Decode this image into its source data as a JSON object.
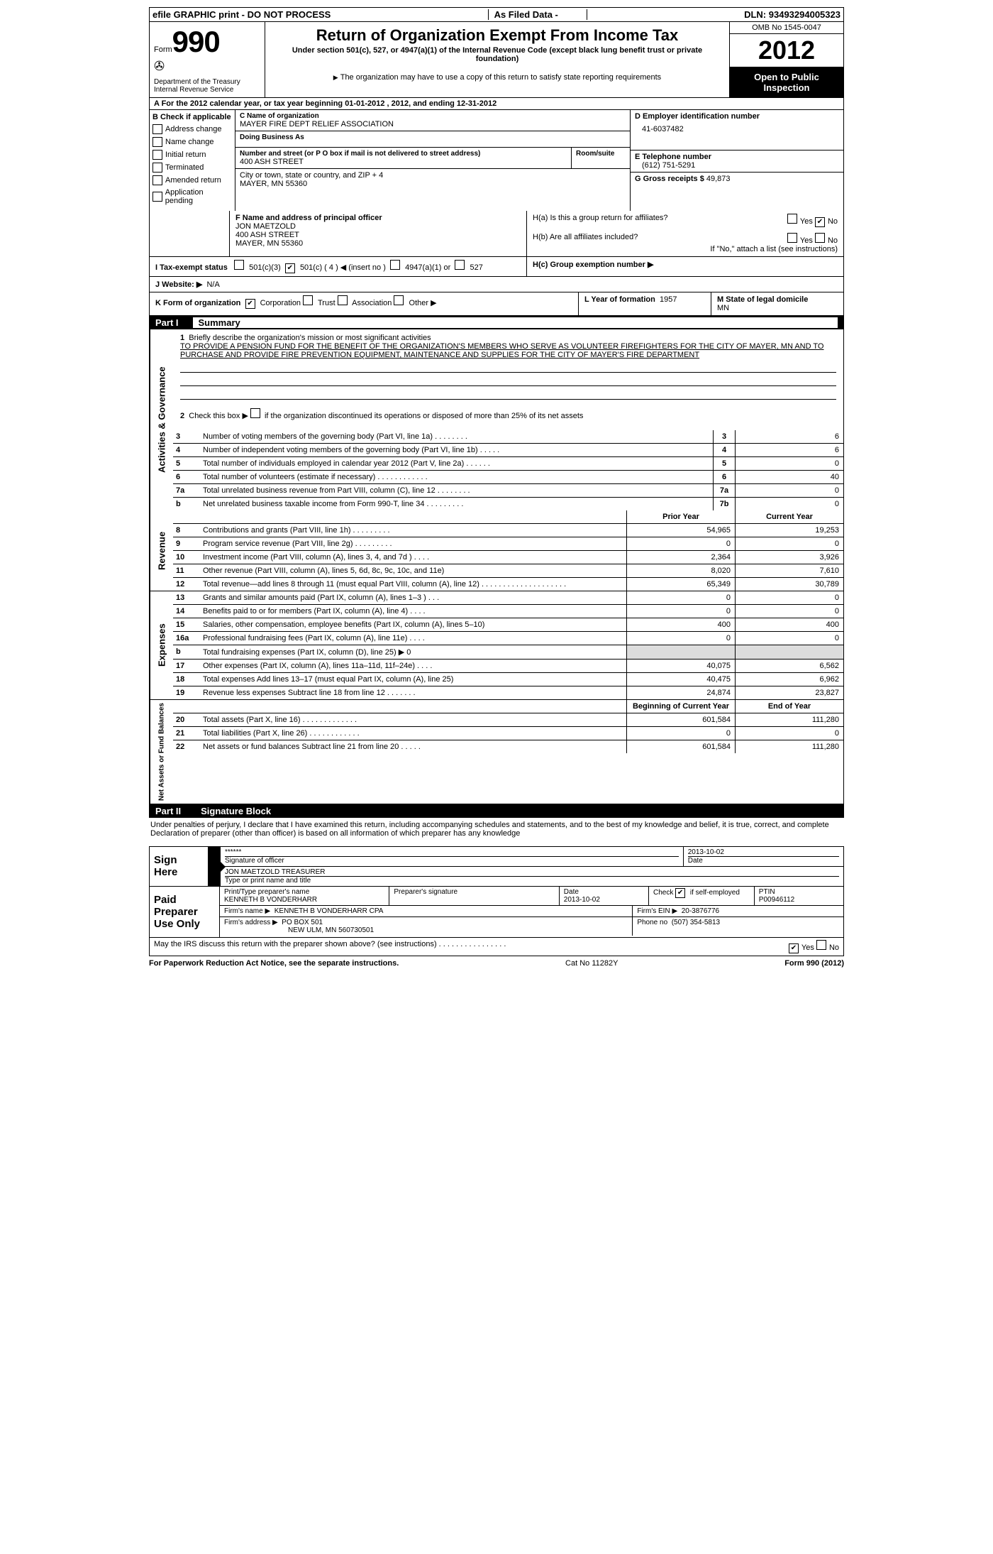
{
  "topbar": {
    "left": "efile GRAPHIC print - DO NOT PROCESS",
    "mid": "As Filed Data -",
    "right": "DLN: 93493294005323"
  },
  "header": {
    "form_prefix": "Form",
    "form_number": "990",
    "dept1": "Department of the Treasury",
    "dept2": "Internal Revenue Service",
    "title": "Return of Organization Exempt From Income Tax",
    "subtitle": "Under section 501(c), 527, or 4947(a)(1) of the Internal Revenue Code (except black lung benefit trust or private foundation)",
    "note": "The organization may have to use a copy of this return to satisfy state reporting requirements",
    "omb": "OMB No 1545-0047",
    "year": "2012",
    "open": "Open to Public Inspection"
  },
  "row_a": "A For the 2012 calendar year, or tax year beginning 01-01-2012     , 2012, and ending 12-31-2012",
  "section_b": {
    "header": "B Check if applicable",
    "items": [
      "Address change",
      "Name change",
      "Initial return",
      "Terminated",
      "Amended return",
      "Application pending"
    ]
  },
  "section_c": {
    "label_name": "C Name of organization",
    "org_name": "MAYER FIRE DEPT RELIEF ASSOCIATION",
    "dba_label": "Doing Business As",
    "dba": "",
    "addr_label": "Number and street (or P O  box if mail is not delivered to street address)",
    "addr": "400 ASH STREET",
    "room_label": "Room/suite",
    "city_label": "City or town, state or country, and ZIP + 4",
    "city": "MAYER, MN  55360"
  },
  "section_d": {
    "label": "D Employer identification number",
    "ein": "41-6037482"
  },
  "section_e": {
    "label": "E Telephone number",
    "phone": "(612) 751-5291"
  },
  "section_g": {
    "label": "G Gross receipts $",
    "amount": "49,873"
  },
  "section_f": {
    "label": "F  Name and address of principal officer",
    "name": "JON MAETZOLD",
    "addr1": "400 ASH STREET",
    "addr2": "MAYER, MN  55360"
  },
  "section_h": {
    "ha": "H(a)  Is this a group return for affiliates?",
    "hb": "H(b)  Are all affiliates included?",
    "hb_note": "If \"No,\" attach a list  (see instructions)",
    "hc": "H(c)  Group exemption number ▶"
  },
  "section_i": {
    "label": "I  Tax-exempt status",
    "opt1": "501(c)(3)",
    "opt2": "501(c) ( 4 ) ◀ (insert no )",
    "opt3": "4947(a)(1) or",
    "opt4": "527"
  },
  "section_j": {
    "label": "J  Website: ▶",
    "value": "N/A"
  },
  "section_k": {
    "label": "K Form of organization",
    "opts": [
      "Corporation",
      "Trust",
      "Association",
      "Other ▶"
    ],
    "checked": 0
  },
  "section_l": {
    "label": "L Year of formation",
    "value": "1957"
  },
  "section_m": {
    "label": "M State of legal domicile",
    "value": "MN"
  },
  "part1": {
    "num": "Part I",
    "title": "Summary"
  },
  "summary": {
    "q1_label": "1",
    "q1_desc": "Briefly describe the organization's mission or most significant activities",
    "mission": "TO PROVIDE A PENSION FUND FOR THE BENEFIT OF THE ORGANIZATION'S MEMBERS WHO SERVE AS VOLUNTEER FIREFIGHTERS FOR THE CITY OF MAYER, MN AND TO PURCHASE AND PROVIDE FIRE PREVENTION EQUIPMENT, MAINTENANCE AND SUPPLIES FOR THE CITY OF MAYER'S FIRE DEPARTMENT",
    "q2": "Check this box ▶      if the organization discontinued its operations or disposed of more than 25% of its net assets",
    "rows_gov": [
      {
        "n": "3",
        "d": "Number of voting members of the governing body (Part VI, line 1a)   .   .   .   .   .   .   .   .",
        "b": "3",
        "v": "6"
      },
      {
        "n": "4",
        "d": "Number of independent voting members of the governing body (Part VI, line 1b)   .   .   .   .   .",
        "b": "4",
        "v": "6"
      },
      {
        "n": "5",
        "d": "Total number of individuals employed in calendar year 2012 (Part V, line 2a)   .   .   .   .   .   .",
        "b": "5",
        "v": "0"
      },
      {
        "n": "6",
        "d": "Total number of volunteers (estimate if necessary)   .   .   .   .   .   .   .   .   .   .   .   .",
        "b": "6",
        "v": "40"
      },
      {
        "n": "7a",
        "d": "Total unrelated business revenue from Part VIII, column (C), line 12   .   .   .   .   .   .   .   .",
        "b": "7a",
        "v": "0"
      },
      {
        "n": "b",
        "d": "Net unrelated business taxable income from Form 990-T, line 34   .   .   .   .   .   .   .   .   .",
        "b": "7b",
        "v": "0"
      }
    ],
    "col_prior": "Prior Year",
    "col_current": "Current Year",
    "revenue": [
      {
        "n": "8",
        "d": "Contributions and grants (Part VIII, line 1h)   .   .   .   .   .   .   .   .   .",
        "p": "54,965",
        "c": "19,253"
      },
      {
        "n": "9",
        "d": "Program service revenue (Part VIII, line 2g)   .   .   .   .   .   .   .   .   .",
        "p": "0",
        "c": "0"
      },
      {
        "n": "10",
        "d": "Investment income (Part VIII, column (A), lines 3, 4, and 7d )   .   .   .   .",
        "p": "2,364",
        "c": "3,926"
      },
      {
        "n": "11",
        "d": "Other revenue (Part VIII, column (A), lines 5, 6d, 8c, 9c, 10c, and 11e)",
        "p": "8,020",
        "c": "7,610"
      },
      {
        "n": "12",
        "d": "Total revenue—add lines 8 through 11 (must equal Part VIII, column (A), line 12)   .   .   .   .   .   .   .   .   .   .   .   .   .   .   .   .   .   .   .   .",
        "p": "65,349",
        "c": "30,789"
      }
    ],
    "expenses": [
      {
        "n": "13",
        "d": "Grants and similar amounts paid (Part IX, column (A), lines 1–3 )   .   .   .",
        "p": "0",
        "c": "0"
      },
      {
        "n": "14",
        "d": "Benefits paid to or for members (Part IX, column (A), line 4)   .   .   .   .",
        "p": "0",
        "c": "0"
      },
      {
        "n": "15",
        "d": "Salaries, other compensation, employee benefits (Part IX, column (A), lines 5–10)",
        "p": "400",
        "c": "400"
      },
      {
        "n": "16a",
        "d": "Professional fundraising fees (Part IX, column (A), line 11e)   .   .   .   .",
        "p": "0",
        "c": "0"
      },
      {
        "n": "b",
        "d": "Total fundraising expenses (Part IX, column (D), line 25) ▶ 0",
        "p": "",
        "c": "",
        "shaded": true
      },
      {
        "n": "17",
        "d": "Other expenses (Part IX, column (A), lines 11a–11d, 11f–24e)   .   .   .   .",
        "p": "40,075",
        "c": "6,562"
      },
      {
        "n": "18",
        "d": "Total expenses  Add lines 13–17 (must equal Part IX, column (A), line 25)",
        "p": "40,475",
        "c": "6,962"
      },
      {
        "n": "19",
        "d": "Revenue less expenses  Subtract line 18 from line 12   .   .   .   .   .   .   .",
        "p": "24,874",
        "c": "23,827"
      }
    ],
    "col_begin": "Beginning of Current Year",
    "col_end": "End of Year",
    "netassets": [
      {
        "n": "20",
        "d": "Total assets (Part X, line 16)   .   .   .   .   .   .   .   .   .   .   .   .   .",
        "p": "601,584",
        "c": "111,280"
      },
      {
        "n": "21",
        "d": "Total liabilities (Part X, line 26)   .   .   .   .   .   .   .   .   .   .   .   .",
        "p": "0",
        "c": "0"
      },
      {
        "n": "22",
        "d": "Net assets or fund balances  Subtract line 21 from line 20   .   .   .   .   .",
        "p": "601,584",
        "c": "111,280"
      }
    ],
    "side_gov": "Activities & Governance",
    "side_rev": "Revenue",
    "side_exp": "Expenses",
    "side_net": "Net Assets or Fund Balances"
  },
  "part2": {
    "num": "Part II",
    "title": "Signature Block"
  },
  "perjury": "Under penalties of perjury, I declare that I have examined this return, including accompanying schedules and statements, and to the best of my knowledge and belief, it is true, correct, and complete  Declaration of preparer (other than officer) is based on all information of which preparer has any knowledge",
  "sign": {
    "label": "Sign Here",
    "sig": "******",
    "sig_label": "Signature of officer",
    "date": "2013-10-02",
    "date_label": "Date",
    "name": "JON MAETZOLD TREASURER",
    "name_label": "Type or print name and title"
  },
  "preparer": {
    "label": "Paid Preparer Use Only",
    "name_label": "Print/Type preparer's name",
    "name": "KENNETH B VONDERHARR",
    "sig_label": "Preparer's signature",
    "date_label": "Date",
    "date": "2013-10-02",
    "check_label": "Check         if self-employed",
    "ptin_label": "PTIN",
    "ptin": "P00946112",
    "firm_name_label": "Firm's name    ▶",
    "firm_name": "KENNETH B VONDERHARR CPA",
    "firm_ein_label": "Firm's EIN ▶",
    "firm_ein": "20-3876776",
    "firm_addr_label": "Firm's address ▶",
    "firm_addr1": "PO BOX 501",
    "firm_addr2": "NEW ULM, MN  560730501",
    "phone_label": "Phone no",
    "phone": "(507) 354-5813"
  },
  "discuss": "May the IRS discuss this return with the preparer shown above? (see instructions)    .   .   .   .   .   .   .   .   .   .   .   .   .   .   .   .",
  "footer": {
    "left": "For Paperwork Reduction Act Notice, see the separate instructions.",
    "mid": "Cat No 11282Y",
    "right": "Form 990 (2012)"
  }
}
